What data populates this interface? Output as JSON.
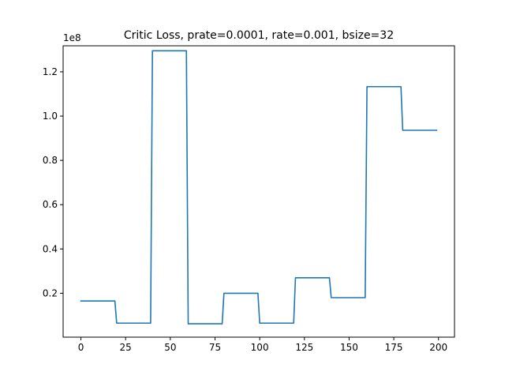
{
  "chart_data": {
    "type": "line",
    "title": "Critic Loss, prate=0.0001, rate=0.001, bsize=32",
    "xlabel": "",
    "ylabel": "",
    "y_offset_label": "1e8",
    "xlim": [
      -9.95,
      208.95
    ],
    "ylim": [
      0.00175,
      1.3175
    ],
    "x_ticks": [
      0,
      25,
      50,
      75,
      100,
      125,
      150,
      175,
      200
    ],
    "x_tick_labels": [
      "0",
      "25",
      "50",
      "75",
      "100",
      "125",
      "150",
      "175",
      "200"
    ],
    "y_ticks": [
      0.2,
      0.4,
      0.6,
      0.8,
      1.0,
      1.2
    ],
    "y_tick_labels": [
      "0.2",
      "0.4",
      "0.6",
      "0.8",
      "1.0",
      "1.2"
    ],
    "grid": false,
    "line_color": "#1f77b4",
    "series": [
      {
        "name": "",
        "x": [
          0,
          19,
          20,
          39,
          40,
          59,
          60,
          79,
          80,
          99,
          100,
          119,
          120,
          139,
          140,
          159,
          160,
          179,
          180,
          199
        ],
        "y": [
          0.165,
          0.165,
          0.065,
          0.065,
          1.295,
          1.295,
          0.062,
          0.062,
          0.2,
          0.2,
          0.065,
          0.065,
          0.27,
          0.27,
          0.18,
          0.18,
          1.133,
          1.133,
          0.936,
          0.936
        ]
      }
    ]
  }
}
